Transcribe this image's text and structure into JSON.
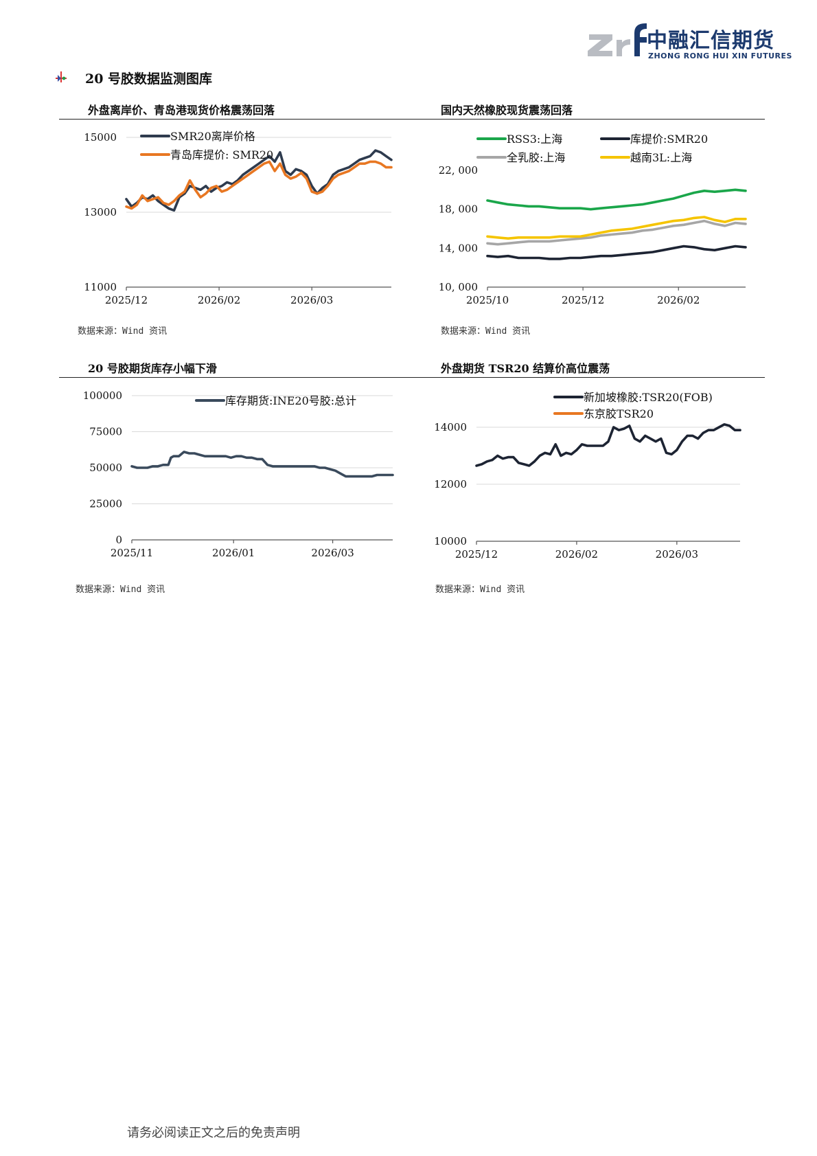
{
  "header": {
    "logo_cn": "中融汇信期货",
    "logo_en": "ZHONG RONG HUI XIN FUTURES",
    "logo_colors": {
      "gray": "#b9bcc2",
      "navy": "#1c3a6e"
    }
  },
  "section_title": "20 号胶数据监测图库",
  "footer": "请务必阅读正文之后的免责声明",
  "panels": [
    {
      "title": "外盘离岸价、青岛港现货价格震荡回落",
      "source": "数据来源：Wind 资讯"
    },
    {
      "title": "国内天然橡胶现货震荡回落",
      "source": "数据来源：Wind 资讯"
    },
    {
      "title": "20 号胶期货库存小幅下滑",
      "source": "数据来源：Wind 资讯"
    },
    {
      "title": "外盘期货 TSR20 结算价高位震荡",
      "source": "数据来源：Wind 资讯"
    }
  ],
  "chart_data": [
    {
      "type": "line",
      "ylim": [
        11000,
        15000
      ],
      "yticks": [
        11000,
        13000,
        15000
      ],
      "ytick_labels": [
        "11000",
        "13000",
        "15000"
      ],
      "xlim": [
        0,
        100
      ],
      "xticks": [
        0,
        35,
        70
      ],
      "xtick_labels": [
        "2025/12",
        "2026/02",
        "2026/03"
      ],
      "legend": "top-left",
      "grid": "horizontal",
      "series": [
        {
          "name": "SMR20离岸价格",
          "color": "#2e3b4e",
          "x": [
            0,
            2,
            4,
            6,
            8,
            10,
            12,
            14,
            16,
            18,
            20,
            22,
            24,
            26,
            28,
            30,
            32,
            34,
            36,
            38,
            40,
            42,
            44,
            46,
            48,
            50,
            52,
            54,
            56,
            58,
            60,
            62,
            64,
            66,
            68,
            70,
            72,
            74,
            76,
            78,
            80,
            82,
            84,
            86,
            88,
            90,
            92,
            94,
            96,
            98,
            100
          ],
          "y": [
            13350,
            13150,
            13250,
            13400,
            13350,
            13450,
            13300,
            13200,
            13100,
            13050,
            13400,
            13500,
            13700,
            13650,
            13600,
            13700,
            13550,
            13650,
            13700,
            13800,
            13750,
            13850,
            14000,
            14100,
            14200,
            14300,
            14400,
            14500,
            14350,
            14600,
            14100,
            14000,
            14150,
            14100,
            14000,
            13700,
            13500,
            13650,
            13750,
            14000,
            14100,
            14150,
            14200,
            14300,
            14400,
            14450,
            14500,
            14650,
            14600,
            14500,
            14400
          ]
        },
        {
          "name": "青岛库提价: SMR20",
          "color": "#e87722",
          "x": [
            0,
            2,
            4,
            6,
            8,
            10,
            12,
            14,
            16,
            18,
            20,
            22,
            24,
            26,
            28,
            30,
            32,
            34,
            36,
            38,
            40,
            42,
            44,
            46,
            48,
            50,
            52,
            54,
            56,
            58,
            60,
            62,
            64,
            66,
            68,
            70,
            72,
            74,
            76,
            78,
            80,
            82,
            84,
            86,
            88,
            90,
            92,
            94,
            96,
            98,
            100
          ],
          "y": [
            13150,
            13100,
            13200,
            13450,
            13300,
            13350,
            13400,
            13250,
            13200,
            13300,
            13450,
            13550,
            13850,
            13600,
            13400,
            13500,
            13650,
            13700,
            13550,
            13600,
            13700,
            13800,
            13900,
            14000,
            14100,
            14200,
            14300,
            14350,
            14100,
            14300,
            14000,
            13900,
            13950,
            14050,
            13900,
            13550,
            13500,
            13550,
            13700,
            13900,
            14000,
            14050,
            14100,
            14200,
            14300,
            14300,
            14350,
            14350,
            14300,
            14200,
            14200
          ]
        }
      ]
    },
    {
      "type": "line",
      "ylim": [
        10000,
        22000
      ],
      "yticks": [
        10000,
        14000,
        18000,
        22000
      ],
      "ytick_labels": [
        "10, 000",
        "14, 000",
        "18, 000",
        "22, 000"
      ],
      "xlim": [
        0,
        100
      ],
      "xticks": [
        0,
        37,
        74
      ],
      "xtick_labels": [
        "2025/10",
        "2025/12",
        "2026/02"
      ],
      "legend": "top",
      "grid": "none",
      "series": [
        {
          "name": "RSS3:上海",
          "color": "#1aa64a",
          "x": [
            0,
            4,
            8,
            12,
            16,
            20,
            24,
            28,
            32,
            36,
            40,
            44,
            48,
            52,
            56,
            60,
            64,
            68,
            72,
            76,
            80,
            84,
            88,
            92,
            96,
            100
          ],
          "y": [
            18900,
            18700,
            18500,
            18400,
            18300,
            18300,
            18200,
            18100,
            18100,
            18100,
            18000,
            18100,
            18200,
            18300,
            18400,
            18500,
            18700,
            18900,
            19100,
            19400,
            19700,
            19900,
            19800,
            19900,
            20000,
            19900
          ]
        },
        {
          "name": "库提价:SMR20",
          "color": "#1d2433",
          "x": [
            0,
            4,
            8,
            12,
            16,
            20,
            24,
            28,
            32,
            36,
            40,
            44,
            48,
            52,
            56,
            60,
            64,
            68,
            72,
            76,
            80,
            84,
            88,
            92,
            96,
            100
          ],
          "y": [
            13200,
            13100,
            13200,
            13000,
            13000,
            13000,
            12900,
            12900,
            13000,
            13000,
            13100,
            13200,
            13200,
            13300,
            13400,
            13500,
            13600,
            13800,
            14000,
            14200,
            14100,
            13900,
            13800,
            14000,
            14200,
            14100
          ]
        },
        {
          "name": "全乳胶:上海",
          "color": "#a6a6a6",
          "x": [
            0,
            4,
            8,
            12,
            16,
            20,
            24,
            28,
            32,
            36,
            40,
            44,
            48,
            52,
            56,
            60,
            64,
            68,
            72,
            76,
            80,
            84,
            88,
            92,
            96,
            100
          ],
          "y": [
            14500,
            14400,
            14500,
            14600,
            14700,
            14700,
            14700,
            14800,
            14900,
            15000,
            15100,
            15300,
            15400,
            15500,
            15600,
            15800,
            15900,
            16100,
            16300,
            16400,
            16600,
            16800,
            16500,
            16300,
            16600,
            16500
          ]
        },
        {
          "name": "越南3L:上海",
          "color": "#f5c400",
          "x": [
            0,
            4,
            8,
            12,
            16,
            20,
            24,
            28,
            32,
            36,
            40,
            44,
            48,
            52,
            56,
            60,
            64,
            68,
            72,
            76,
            80,
            84,
            88,
            92,
            96,
            100
          ],
          "y": [
            15200,
            15100,
            15000,
            15100,
            15100,
            15100,
            15100,
            15200,
            15200,
            15200,
            15400,
            15600,
            15800,
            15900,
            16000,
            16200,
            16400,
            16600,
            16800,
            16900,
            17100,
            17200,
            16900,
            16700,
            17000,
            17000
          ]
        }
      ]
    },
    {
      "type": "line",
      "ylim": [
        0,
        100000
      ],
      "yticks": [
        0,
        25000,
        50000,
        75000,
        100000
      ],
      "ytick_labels": [
        "0",
        "25000",
        "50000",
        "75000",
        "100000"
      ],
      "xlim": [
        0,
        100
      ],
      "xticks": [
        0,
        39,
        77
      ],
      "xtick_labels": [
        "2025/11",
        "2026/01",
        "2026/03"
      ],
      "legend": "top",
      "grid": "horizontal",
      "series": [
        {
          "name": "库存期货:INE20号胶:总计",
          "color": "#3a4a5c",
          "x": [
            0,
            2,
            4,
            6,
            8,
            10,
            12,
            14,
            15,
            16,
            18,
            20,
            22,
            24,
            26,
            28,
            30,
            32,
            34,
            36,
            38,
            40,
            42,
            44,
            46,
            48,
            50,
            52,
            54,
            56,
            58,
            60,
            62,
            64,
            66,
            68,
            70,
            72,
            74,
            76,
            78,
            80,
            82,
            84,
            86,
            88,
            90,
            92,
            94,
            96,
            98,
            100
          ],
          "y": [
            51000,
            50000,
            50000,
            50000,
            51000,
            51000,
            52000,
            52000,
            57000,
            58000,
            58000,
            61000,
            60000,
            60000,
            59000,
            58000,
            58000,
            58000,
            58000,
            58000,
            57000,
            58000,
            58000,
            57000,
            57000,
            56000,
            56000,
            52000,
            51000,
            51000,
            51000,
            51000,
            51000,
            51000,
            51000,
            51000,
            51000,
            50000,
            50000,
            49000,
            48000,
            46000,
            44000,
            44000,
            44000,
            44000,
            44000,
            44000,
            45000,
            45000,
            45000,
            45000
          ]
        }
      ]
    },
    {
      "type": "line",
      "ylim": [
        10000,
        14000
      ],
      "yticks": [
        10000,
        12000,
        14000
      ],
      "ytick_labels": [
        "10000",
        "12000",
        "14000"
      ],
      "xlim": [
        0,
        100
      ],
      "xticks": [
        0,
        38,
        76
      ],
      "xtick_labels": [
        "2025/12",
        "2026/02",
        "2026/03"
      ],
      "legend": "top",
      "grid": "horizontal",
      "series": [
        {
          "name": "新加坡橡胶:TSR20(FOB)",
          "color": "#1d2433",
          "x": [
            0,
            2,
            4,
            6,
            8,
            10,
            12,
            14,
            16,
            18,
            20,
            22,
            24,
            26,
            28,
            30,
            32,
            34,
            36,
            38,
            40,
            42,
            44,
            46,
            48,
            50,
            52,
            54,
            56,
            58,
            60,
            62,
            64,
            66,
            68,
            70,
            72,
            74,
            76,
            78,
            80,
            82,
            84,
            86,
            88,
            90,
            92,
            94,
            96,
            98,
            100
          ],
          "y": [
            12650,
            12700,
            12800,
            12850,
            13000,
            12900,
            12950,
            12950,
            12750,
            12700,
            12650,
            12800,
            13000,
            13100,
            13050,
            13400,
            13000,
            13100,
            13050,
            13200,
            13400,
            13350,
            13350,
            13350,
            13350,
            13500,
            14000,
            13900,
            13950,
            14050,
            13600,
            13500,
            13700,
            13600,
            13500,
            13600,
            13100,
            13050,
            13200,
            13500,
            13700,
            13700,
            13600,
            13800,
            13900,
            13900,
            14000,
            14100,
            14050,
            13900,
            13900
          ]
        },
        {
          "name": "东京胶TSR20",
          "color": "#e87722",
          "x": [],
          "y": []
        }
      ]
    }
  ]
}
